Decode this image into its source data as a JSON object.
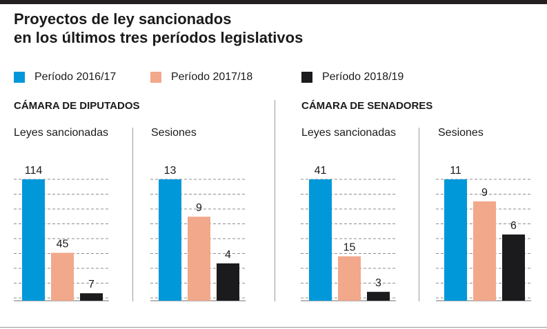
{
  "title": {
    "line1": "Proyectos de ley sancionados",
    "line2": "en los últimos tres períodos legislativos"
  },
  "colors": {
    "p2016": "#0098d9",
    "p2017": "#f2a88a",
    "p2018": "#1b1a1c"
  },
  "legend": [
    {
      "label": "Período 2016/17",
      "color": "#0098d9"
    },
    {
      "label": "Período 2017/18",
      "color": "#f2a88a"
    },
    {
      "label": "Período 2018/19",
      "color": "#1b1a1c"
    }
  ],
  "chambers": [
    {
      "title": "CÁMARA DE DIPUTADOS"
    },
    {
      "title": "CÁMARA DE SENADORES"
    }
  ],
  "chart_data": [
    {
      "type": "bar",
      "chamber": "CÁMARA DE DIPUTADOS",
      "title": "Leyes sancionadas",
      "categories": [
        "Período 2016/17",
        "Período 2017/18",
        "Período 2018/19"
      ],
      "values": [
        114,
        45,
        7
      ],
      "ylim": [
        0,
        114
      ]
    },
    {
      "type": "bar",
      "chamber": "CÁMARA DE DIPUTADOS",
      "title": "Sesiones",
      "categories": [
        "Período 2016/17",
        "Período 2017/18",
        "Período 2018/19"
      ],
      "values": [
        13,
        9,
        4
      ],
      "ylim": [
        0,
        13
      ]
    },
    {
      "type": "bar",
      "chamber": "CÁMARA DE SENADORES",
      "title": "Leyes sancionadas",
      "categories": [
        "Período 2016/17",
        "Período 2017/18",
        "Período 2018/19"
      ],
      "values": [
        41,
        15,
        3
      ],
      "ylim": [
        0,
        41
      ]
    },
    {
      "type": "bar",
      "chamber": "CÁMARA DE SENADORES",
      "title": "Sesiones",
      "categories": [
        "Período 2016/17",
        "Período 2017/18",
        "Período 2018/19"
      ],
      "values": [
        11,
        9,
        6
      ],
      "ylim": [
        0,
        11
      ]
    }
  ]
}
